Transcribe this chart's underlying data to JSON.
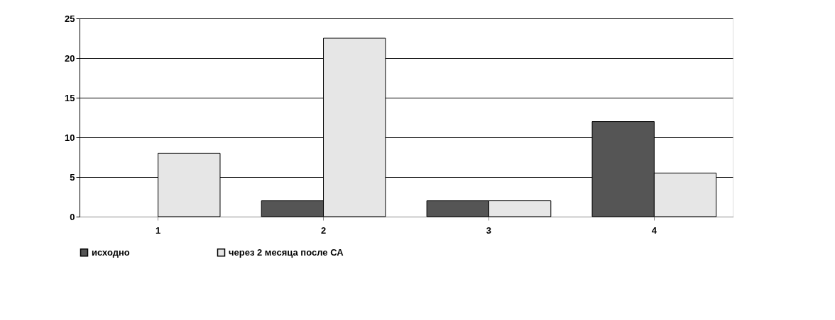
{
  "chart_data": {
    "type": "bar",
    "categories": [
      "1",
      "2",
      "3",
      "4"
    ],
    "series": [
      {
        "name": "исходно",
        "color": "#555555",
        "values": [
          0,
          2,
          2,
          12
        ]
      },
      {
        "name": "через 2 месяца после СА",
        "color": "#e6e6e6",
        "values": [
          8,
          22.5,
          2,
          5.5
        ]
      }
    ],
    "ylim": [
      0,
      25
    ],
    "yticks": [
      0,
      5,
      10,
      15,
      20,
      25
    ],
    "grid": "y",
    "legend": "bottom"
  }
}
